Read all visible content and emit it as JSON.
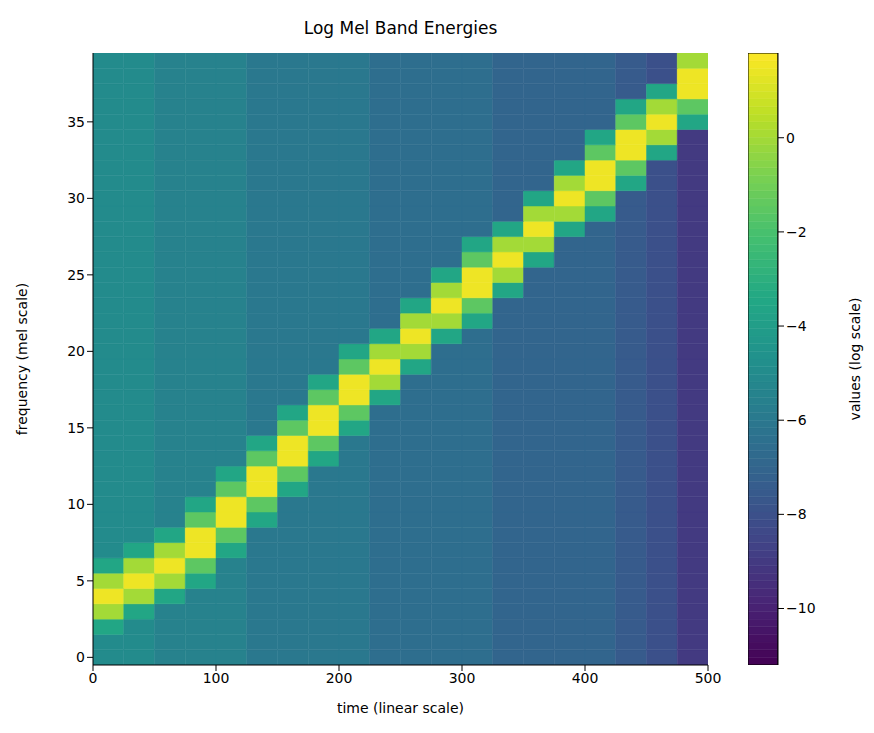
{
  "chart_data": {
    "type": "heatmap",
    "title": "Log Mel Band Energies",
    "x_label": "time (linear scale)",
    "y_label": "frequency (mel scale)",
    "x_edges": [
      0,
      25,
      50,
      75,
      100,
      125,
      150,
      175,
      200,
      225,
      250,
      275,
      300,
      325,
      350,
      375,
      400,
      425,
      450,
      475,
      500
    ],
    "y_edges": [
      -0.5,
      0.5,
      1.5,
      2.5,
      3.5,
      4.5,
      5.5,
      6.5,
      7.5,
      8.5,
      9.5,
      10.5,
      11.5,
      12.5,
      13.5,
      14.5,
      15.5,
      16.5,
      17.5,
      18.5,
      19.5,
      20.5,
      21.5,
      22.5,
      23.5,
      24.5,
      25.5,
      26.5,
      27.5,
      28.5,
      29.5,
      30.5,
      31.5,
      32.5,
      33.5,
      34.5,
      35.5,
      36.5,
      37.5,
      38.5,
      39.5
    ],
    "xlim": [
      0,
      500
    ],
    "xticks": [
      0,
      100,
      200,
      300,
      400,
      500
    ],
    "ylim": [
      -0.5,
      39.5
    ],
    "yticks": [
      0,
      5,
      10,
      15,
      20,
      25,
      30,
      35
    ],
    "cells": [
      [
        -5,
        -5,
        -5.5,
        -5.5,
        -5.5,
        -6,
        -6,
        -6,
        -6,
        -6.5,
        -6.5,
        -6.5,
        -6.5,
        -7,
        -7,
        -7,
        -7,
        -7.5,
        -8,
        -9
      ],
      [
        -5,
        -5,
        -5.5,
        -5.5,
        -5.5,
        -6,
        -6,
        -6,
        -6,
        -6.5,
        -6.5,
        -6.5,
        -6.5,
        -7,
        -7,
        -7,
        -7,
        -7.5,
        -8,
        -9
      ],
      [
        -3.5,
        -5,
        -5.5,
        -5.5,
        -5.5,
        -6,
        -6,
        -6,
        -6,
        -6.5,
        -6.5,
        -6.5,
        -6.5,
        -7,
        -7,
        -7,
        -7,
        -7.5,
        -8,
        -9
      ],
      [
        0,
        -3.5,
        -5.5,
        -5.5,
        -5.5,
        -6,
        -6,
        -6,
        -6,
        -6.5,
        -6.5,
        -6.5,
        -6.5,
        -7,
        -7,
        -7,
        -7,
        -7.5,
        -8,
        -9
      ],
      [
        1.5,
        0,
        -3.5,
        -5.5,
        -5.5,
        -6,
        -6,
        -6,
        -6,
        -6.5,
        -6.5,
        -6.5,
        -6.5,
        -7,
        -7,
        -7,
        -7,
        -7.5,
        -8,
        -9
      ],
      [
        0,
        1.5,
        0,
        -3.5,
        -5.5,
        -6,
        -6,
        -6,
        -6,
        -6.5,
        -6.5,
        -6.5,
        -6.5,
        -7,
        -7,
        -7,
        -7,
        -7.5,
        -8,
        -9
      ],
      [
        -3.5,
        0,
        1.5,
        -1.5,
        -5.5,
        -6,
        -6,
        -6,
        -6,
        -6.5,
        -6.5,
        -6.5,
        -6.5,
        -7,
        -7,
        -7,
        -7,
        -7.5,
        -8,
        -9
      ],
      [
        -5,
        -3.5,
        0,
        1.5,
        -3.5,
        -6,
        -6,
        -6,
        -6,
        -6.5,
        -6.5,
        -6.5,
        -6.5,
        -7,
        -7,
        -7,
        -7,
        -7.5,
        -8,
        -9
      ],
      [
        -5,
        -5,
        -3.5,
        1.5,
        -1.5,
        -6,
        -6,
        -6,
        -6,
        -6.5,
        -6.5,
        -6.5,
        -6.5,
        -7,
        -7,
        -7,
        -7,
        -7.5,
        -8,
        -9
      ],
      [
        -5,
        -5,
        -5.5,
        -1.5,
        1.5,
        -3.5,
        -6,
        -6,
        -6,
        -6.5,
        -6.5,
        -6.5,
        -6.5,
        -7,
        -7,
        -7,
        -7,
        -7.5,
        -8,
        -9
      ],
      [
        -5,
        -5,
        -5.5,
        -3.5,
        1.5,
        -1.5,
        -6,
        -6,
        -6,
        -6.5,
        -6.5,
        -6.5,
        -6.5,
        -7,
        -7,
        -7,
        -7,
        -7.5,
        -8,
        -9
      ],
      [
        -5,
        -5,
        -5.5,
        -5.5,
        -1.5,
        1.5,
        -3.5,
        -6,
        -6,
        -6.5,
        -6.5,
        -6.5,
        -6.5,
        -7,
        -7,
        -7,
        -7,
        -7.5,
        -8,
        -9
      ],
      [
        -5,
        -5,
        -5.5,
        -5.5,
        -3.5,
        1.5,
        -1.5,
        -6,
        -6,
        -6.5,
        -6.5,
        -6.5,
        -6.5,
        -7,
        -7,
        -7,
        -7,
        -7.5,
        -8,
        -9
      ],
      [
        -5,
        -5,
        -5.5,
        -5.5,
        -5.5,
        -1.5,
        1.5,
        -3.5,
        -6,
        -6.5,
        -6.5,
        -6.5,
        -6.5,
        -7,
        -7,
        -7,
        -7,
        -7.5,
        -8,
        -9
      ],
      [
        -5,
        -5,
        -5.5,
        -5.5,
        -5.5,
        -3.5,
        1.5,
        -1.5,
        -6,
        -6.5,
        -6.5,
        -6.5,
        -6.5,
        -7,
        -7,
        -7,
        -7,
        -7.5,
        -8,
        -9
      ],
      [
        -5,
        -5,
        -5.5,
        -5.5,
        -5.5,
        -6,
        -1.5,
        1.5,
        -3.5,
        -6.5,
        -6.5,
        -6.5,
        -6.5,
        -7,
        -7,
        -7,
        -7,
        -7.5,
        -8,
        -9
      ],
      [
        -5,
        -5,
        -5.5,
        -5.5,
        -5.5,
        -6,
        -3.5,
        1.5,
        -1.5,
        -6.5,
        -6.5,
        -6.5,
        -6.5,
        -7,
        -7,
        -7,
        -7,
        -7.5,
        -8,
        -9
      ],
      [
        -5,
        -5,
        -5.5,
        -5.5,
        -5.5,
        -6,
        -6,
        -1.5,
        1.5,
        -3.5,
        -6.5,
        -6.5,
        -6.5,
        -7,
        -7,
        -7,
        -7,
        -7.5,
        -8,
        -9
      ],
      [
        -5,
        -5,
        -5.5,
        -5.5,
        -5.5,
        -6,
        -6,
        -3.5,
        1.5,
        0,
        -6.5,
        -6.5,
        -6.5,
        -7,
        -7,
        -7,
        -7,
        -7.5,
        -8,
        -9
      ],
      [
        -5,
        -5,
        -5.5,
        -5.5,
        -5.5,
        -6,
        -6,
        -6,
        -1.5,
        1.5,
        -3.5,
        -6.5,
        -6.5,
        -7,
        -7,
        -7,
        -7,
        -7.5,
        -8,
        -9
      ],
      [
        -5,
        -5,
        -5.5,
        -5.5,
        -5.5,
        -6,
        -6,
        -6,
        -3.5,
        0,
        0,
        -6.5,
        -6.5,
        -7,
        -7,
        -7,
        -7,
        -7.5,
        -8,
        -9
      ],
      [
        -5,
        -5,
        -5.5,
        -5.5,
        -5.5,
        -6,
        -6,
        -6,
        -6,
        -3.5,
        1.5,
        -3.5,
        -6.5,
        -7,
        -7,
        -7,
        -7,
        -7.5,
        -8,
        -9
      ],
      [
        -5,
        -5,
        -5.5,
        -5.5,
        -5.5,
        -6,
        -6,
        -6,
        -6,
        -6.5,
        0,
        0,
        -3.5,
        -7,
        -7,
        -7,
        -7,
        -7.5,
        -8,
        -9
      ],
      [
        -5,
        -5,
        -5.5,
        -5.5,
        -5.5,
        -6,
        -6,
        -6,
        -6,
        -6.5,
        -3.5,
        1.5,
        -1.5,
        -7,
        -7,
        -7,
        -7,
        -7.5,
        -8,
        -9
      ],
      [
        -5,
        -5,
        -5.5,
        -5.5,
        -5.5,
        -6,
        -6,
        -6,
        -6,
        -6.5,
        -6.5,
        0,
        1.5,
        -3.5,
        -7,
        -7,
        -7,
        -7.5,
        -8,
        -9
      ],
      [
        -5,
        -5,
        -5.5,
        -5.5,
        -5.5,
        -6,
        -6,
        -6,
        -6,
        -6.5,
        -6.5,
        -3.5,
        1.5,
        0,
        -7,
        -7,
        -7,
        -7.5,
        -8,
        -9
      ],
      [
        -5,
        -5,
        -5.5,
        -5.5,
        -5.5,
        -6,
        -6,
        -6,
        -6,
        -6.5,
        -6.5,
        -6.5,
        -1.5,
        1.5,
        -3.5,
        -7,
        -7,
        -7.5,
        -8,
        -9
      ],
      [
        -5,
        -5,
        -5.5,
        -5.5,
        -5.5,
        -6,
        -6,
        -6,
        -6,
        -6.5,
        -6.5,
        -6.5,
        -3.5,
        0,
        0,
        -7,
        -7,
        -7.5,
        -8,
        -9
      ],
      [
        -5,
        -5,
        -5.5,
        -5.5,
        -5.5,
        -6,
        -6,
        -6,
        -6,
        -6.5,
        -6.5,
        -6.5,
        -6.5,
        -3.5,
        1.5,
        -3.5,
        -7,
        -7.5,
        -8,
        -9
      ],
      [
        -5,
        -5,
        -5.5,
        -5.5,
        -5.5,
        -6,
        -6,
        -6,
        -6,
        -6.5,
        -6.5,
        -6.5,
        -6.5,
        -7,
        0,
        0,
        -3.5,
        -7.5,
        -8,
        -9
      ],
      [
        -5,
        -5,
        -5.5,
        -5.5,
        -5.5,
        -6,
        -6,
        -6,
        -6,
        -6.5,
        -6.5,
        -6.5,
        -6.5,
        -7,
        -3.5,
        1.5,
        -1.5,
        -7.5,
        -8,
        -9
      ],
      [
        -5,
        -5,
        -5.5,
        -5.5,
        -5.5,
        -6,
        -6,
        -6,
        -6,
        -6.5,
        -6.5,
        -6.5,
        -6.5,
        -7,
        -7,
        0,
        1.5,
        -3.5,
        -8,
        -9
      ],
      [
        -5,
        -5,
        -5.5,
        -5.5,
        -5.5,
        -6,
        -6,
        -6,
        -6,
        -6.5,
        -6.5,
        -6.5,
        -6.5,
        -7,
        -7,
        -3.5,
        1.5,
        -1.5,
        -8,
        -9
      ],
      [
        -5,
        -5,
        -5.5,
        -5.5,
        -5.5,
        -6,
        -6,
        -6,
        -6,
        -6.5,
        -6.5,
        -6.5,
        -6.5,
        -7,
        -7,
        -7,
        -1.5,
        1.5,
        -3.5,
        -9
      ],
      [
        -5,
        -5,
        -5.5,
        -5.5,
        -5.5,
        -6,
        -6,
        -6,
        -6,
        -6.5,
        -6.5,
        -6.5,
        -6.5,
        -7,
        -7,
        -7,
        -3.5,
        1.5,
        0,
        -9
      ],
      [
        -5,
        -5,
        -5.5,
        -5.5,
        -5.5,
        -6,
        -6,
        -6,
        -6,
        -6.5,
        -6.5,
        -6.5,
        -6.5,
        -7,
        -7,
        -7,
        -7,
        -1.5,
        1.5,
        -3.5
      ],
      [
        -5,
        -5,
        -5.5,
        -5.5,
        -5.5,
        -6,
        -6,
        -6,
        -6,
        -6.5,
        -6.5,
        -6.5,
        -6.5,
        -7,
        -7,
        -7,
        -7,
        -3.5,
        0,
        -1.5
      ],
      [
        -5,
        -5,
        -5.5,
        -5.5,
        -5.5,
        -6,
        -6,
        -6,
        -6,
        -6.5,
        -6.5,
        -6.5,
        -6.5,
        -7,
        -7,
        -7,
        -7,
        -7.5,
        -3.5,
        1.5
      ],
      [
        -5,
        -5,
        -5.5,
        -5.5,
        -5.5,
        -6,
        -6,
        -6,
        -6,
        -6.5,
        -6.5,
        -6.5,
        -6.5,
        -7,
        -7,
        -7,
        -7,
        -7.5,
        -8,
        1.5
      ],
      [
        -5,
        -5,
        -5.5,
        -5.5,
        -5.5,
        -6,
        -6,
        -6,
        -6,
        -6.5,
        -6.5,
        -6.5,
        -6.5,
        -7,
        -7,
        -7,
        -7,
        -7.5,
        -8,
        0
      ]
    ],
    "colorbar": {
      "label": "values (log scale)",
      "range": [
        -11.2,
        1.8
      ],
      "ticks": [
        {
          "value": -10,
          "label": "−10"
        },
        {
          "value": -8,
          "label": "−8"
        },
        {
          "value": -6,
          "label": "−6"
        },
        {
          "value": -4,
          "label": "−4"
        },
        {
          "value": -2,
          "label": "−2"
        },
        0
      ]
    }
  }
}
